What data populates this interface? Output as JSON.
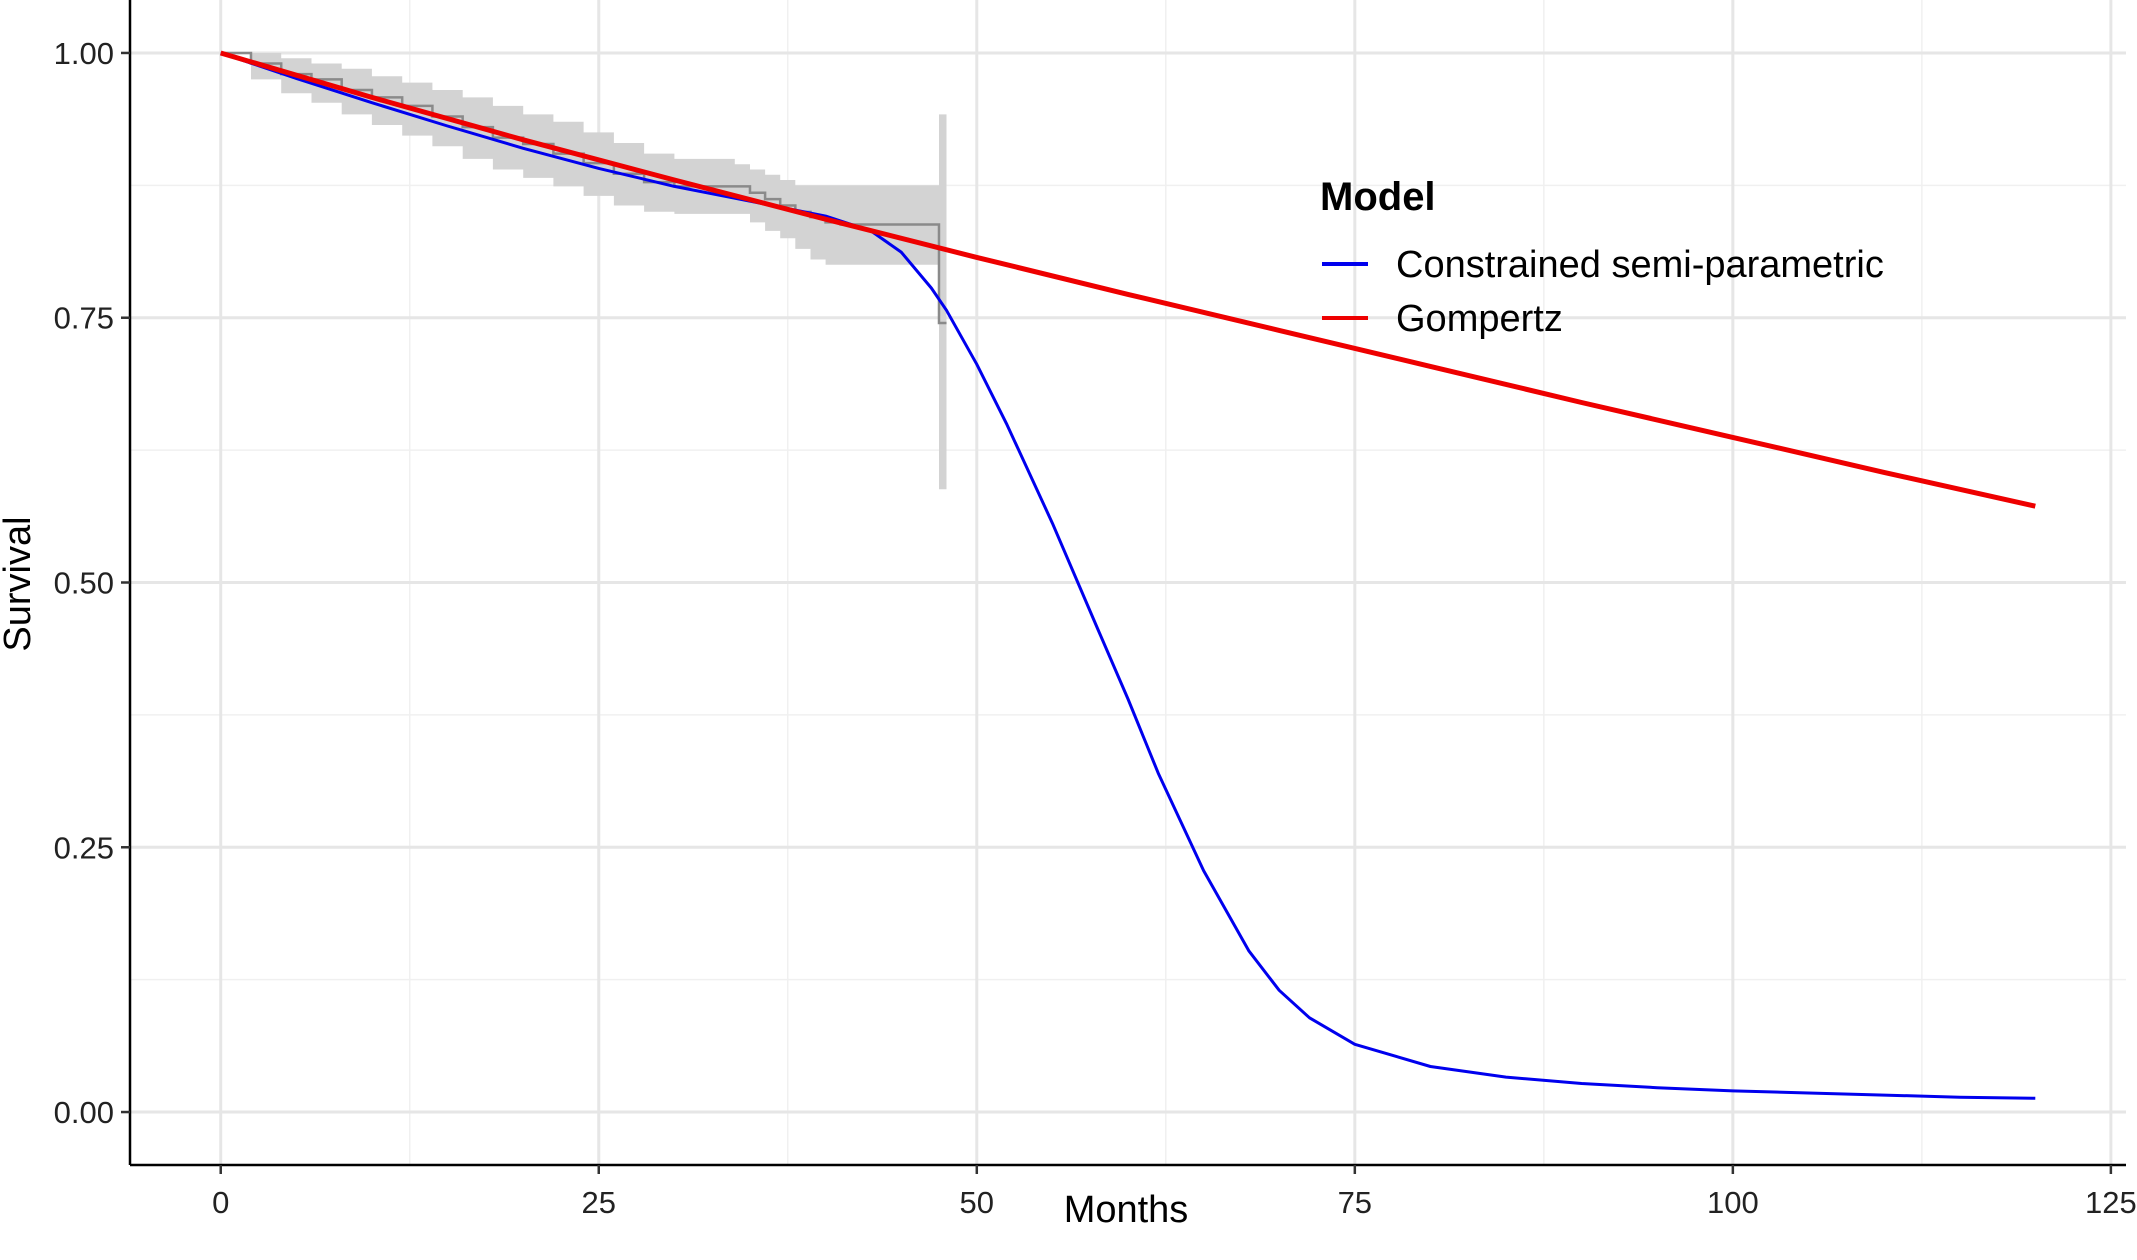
{
  "chart_data": {
    "type": "line",
    "title": "",
    "xlabel": "Months",
    "ylabel": "Survival",
    "xlim": [
      -6,
      126
    ],
    "ylim": [
      -0.05,
      1.05
    ],
    "x_ticks": [
      0,
      25,
      50,
      75,
      100,
      125
    ],
    "x_tick_labels": [
      "0",
      "25",
      "50",
      "75",
      "100",
      "125"
    ],
    "y_ticks": [
      0,
      0.25,
      0.5,
      0.75,
      1
    ],
    "y_tick_labels": [
      "0.00",
      "0.25",
      "0.50",
      "0.75",
      "1.00"
    ],
    "grid": true,
    "legend": {
      "title": "Model",
      "placement": "right-inside",
      "entries": [
        "Constrained semi-parametric",
        "Gompertz"
      ]
    },
    "series": [
      {
        "name": "Constrained semi-parametric",
        "color": "#0000ee",
        "x": [
          0,
          5,
          10,
          15,
          20,
          25,
          30,
          35,
          40,
          43,
          45,
          47,
          48,
          50,
          52,
          55,
          58,
          60,
          62,
          65,
          68,
          70,
          72,
          75,
          80,
          85,
          90,
          95,
          100,
          105,
          110,
          115,
          120
        ],
        "y": [
          1.0,
          0.976,
          0.953,
          0.931,
          0.91,
          0.891,
          0.874,
          0.86,
          0.846,
          0.832,
          0.812,
          0.778,
          0.757,
          0.706,
          0.649,
          0.556,
          0.456,
          0.39,
          0.32,
          0.228,
          0.152,
          0.115,
          0.089,
          0.064,
          0.043,
          0.033,
          0.027,
          0.023,
          0.02,
          0.018,
          0.016,
          0.014,
          0.013
        ]
      },
      {
        "name": "Gompertz",
        "color": "#ee0000",
        "x": [
          0,
          10,
          20,
          30,
          40,
          50,
          60,
          70,
          80,
          90,
          100,
          110,
          120
        ],
        "y": [
          1.0,
          0.958,
          0.918,
          0.88,
          0.843,
          0.807,
          0.772,
          0.738,
          0.704,
          0.67,
          0.637,
          0.604,
          0.572
        ]
      }
    ],
    "kaplan_meier": {
      "color": "#8a8a8a",
      "band_color": "#d3d3d3",
      "x": [
        0,
        2,
        4,
        6,
        8,
        10,
        12,
        14,
        16,
        18,
        20,
        22,
        24,
        26,
        28,
        30,
        32,
        34,
        35,
        36,
        37,
        38,
        39,
        40,
        41,
        42,
        44,
        46,
        47.5,
        48
      ],
      "y": [
        1.0,
        0.99,
        0.98,
        0.975,
        0.965,
        0.958,
        0.95,
        0.94,
        0.93,
        0.92,
        0.914,
        0.905,
        0.896,
        0.886,
        0.878,
        0.874,
        0.874,
        0.874,
        0.868,
        0.862,
        0.856,
        0.85,
        0.845,
        0.84,
        0.838,
        0.838,
        0.838,
        0.838,
        0.745,
        0.745
      ],
      "lower": [
        1.0,
        0.975,
        0.962,
        0.953,
        0.942,
        0.932,
        0.922,
        0.912,
        0.9,
        0.89,
        0.882,
        0.874,
        0.865,
        0.856,
        0.85,
        0.848,
        0.848,
        0.848,
        0.84,
        0.832,
        0.825,
        0.815,
        0.805,
        0.8,
        0.8,
        0.8,
        0.8,
        0.8,
        0.588,
        0.588
      ],
      "upper": [
        1.0,
        1.0,
        0.995,
        0.99,
        0.985,
        0.978,
        0.972,
        0.965,
        0.958,
        0.95,
        0.942,
        0.935,
        0.925,
        0.915,
        0.905,
        0.9,
        0.9,
        0.895,
        0.89,
        0.885,
        0.88,
        0.875,
        0.875,
        0.875,
        0.875,
        0.875,
        0.875,
        0.875,
        0.942,
        0.942
      ]
    }
  }
}
